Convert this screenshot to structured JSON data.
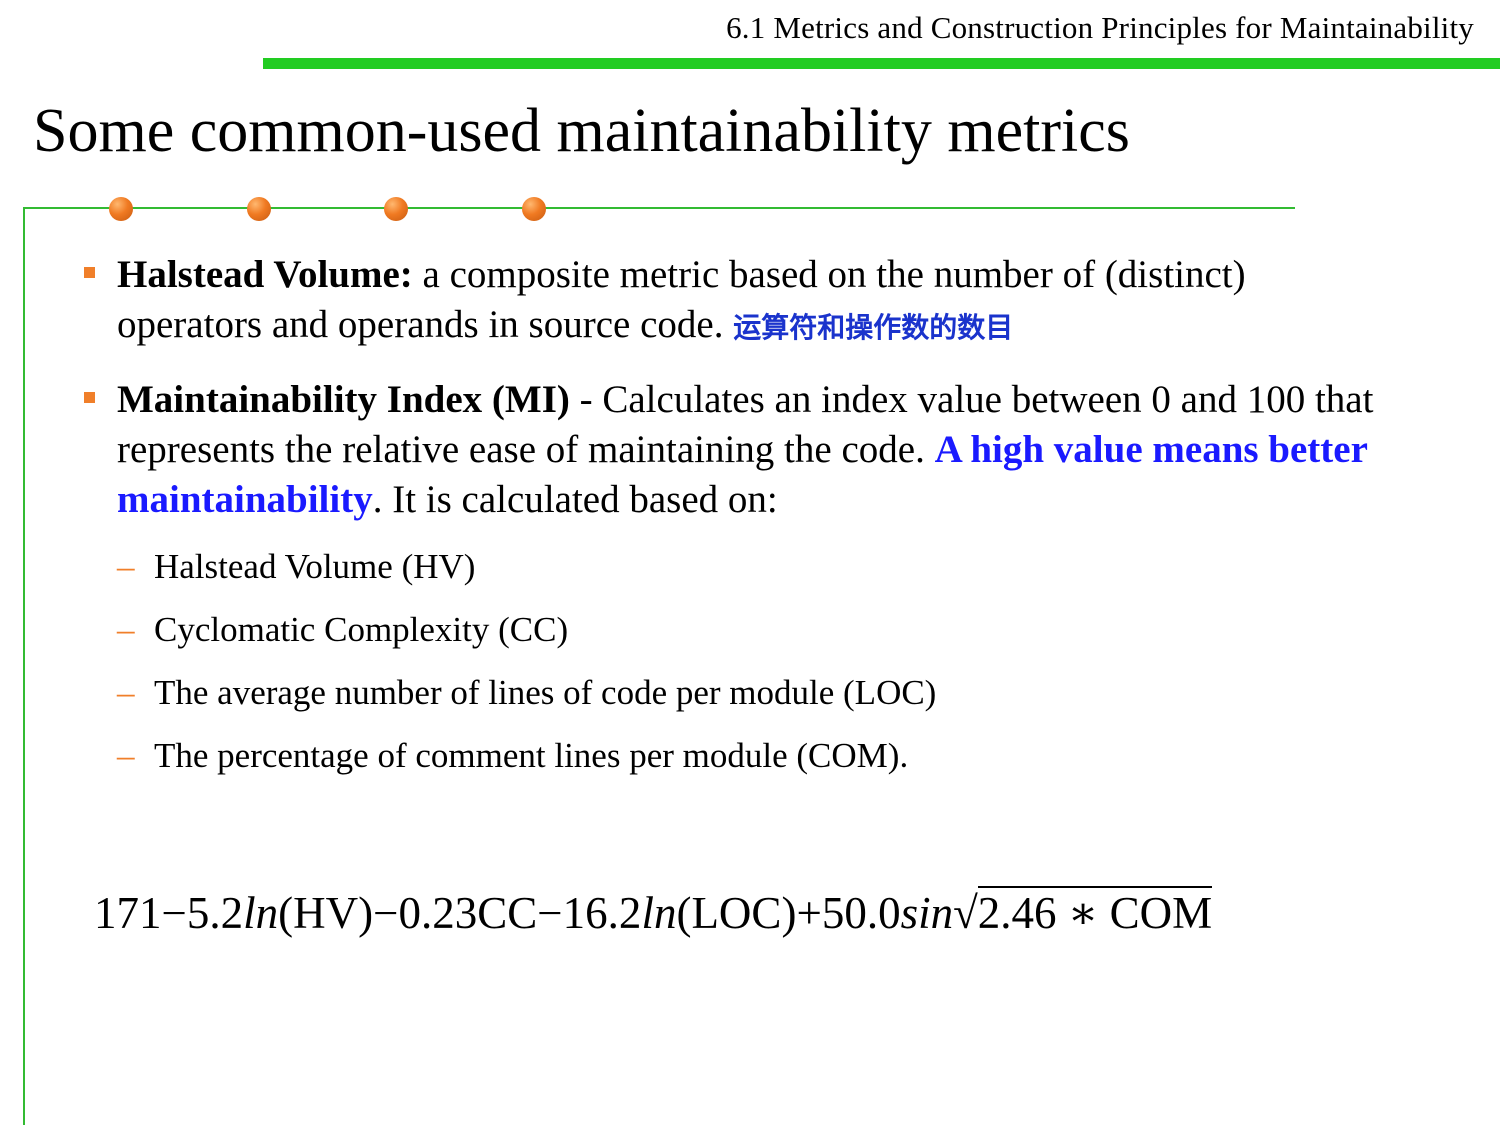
{
  "header": {
    "section_title": "6.1 Metrics and Construction Principles for Maintainability"
  },
  "slide": {
    "title": "Some common-used maintainability metrics"
  },
  "bullets": [
    {
      "term": "Halstead Volume:",
      "text": " a composite metric based on the number of (distinct) operators and operands in source code. ",
      "note_cn": "运算符和操作数的数目"
    },
    {
      "term": "Maintainability Index (MI)",
      "text_before": " - Calculates an index value between 0 and 100 that represents the relative ease of maintaining the code. ",
      "highlight": "A high value means better maintainability",
      "text_after": ". It is calculated based on:"
    }
  ],
  "sub_items": [
    "Halstead Volume (HV)",
    "Cyclomatic Complexity (CC)",
    "The average number of lines of code per module (LOC)",
    "The percentage of comment lines per module (COM)."
  ],
  "formula": {
    "p1": "171−5.2",
    "ln1": "ln",
    "hv": "(HV)",
    "p2": "−0.23",
    "cc": "CC",
    "p3": "−16.2",
    "ln2": "ln",
    "loc": "(LOC)",
    "p4": "+50.0",
    "sin": "sin",
    "sqrt": "√",
    "radicand": "2.46 ∗ ",
    "com": "COM"
  },
  "colors": {
    "header_rule": "#22cc22",
    "frame_green": "#33bb33",
    "bullet_orange": "#f07f2a",
    "highlight_blue": "#1a1aff",
    "cn_blue": "#1a33cc"
  }
}
